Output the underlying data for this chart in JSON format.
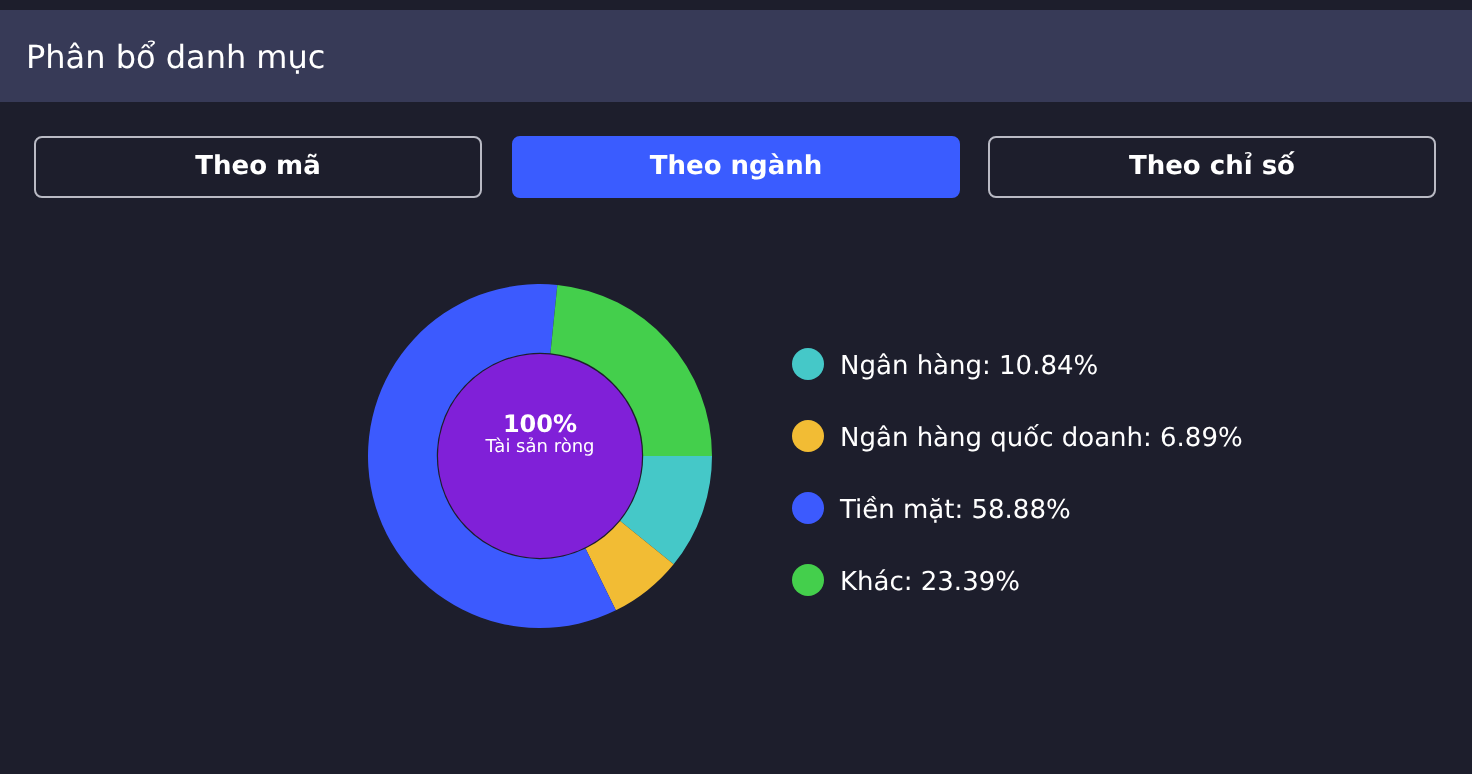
{
  "chart_data": {
    "type": "donut",
    "title": "Phân bổ danh mục",
    "categories": [
      "Ngân hàng",
      "Ngân hàng quốc doanh",
      "Tiền mặt",
      "Khác"
    ],
    "values": [
      10.84,
      6.89,
      58.88,
      23.39
    ],
    "value_labels": [
      "10.84%",
      "6.89%",
      "58.88%",
      "23.39%"
    ],
    "colors": [
      "#45c8c8",
      "#f2bc34",
      "#3c5afe",
      "#44cf4c"
    ],
    "annotations": [
      "Theo mã",
      "Theo ngành",
      "Theo chỉ số",
      "100%",
      "Tài sản ròng"
    ],
    "legend": "right"
  }
}
